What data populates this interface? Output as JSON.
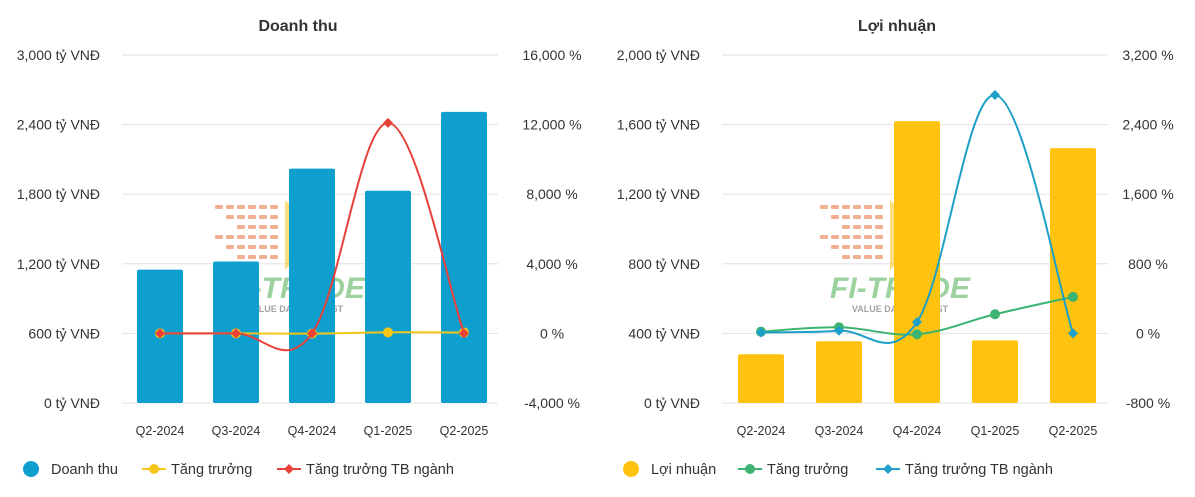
{
  "chart_data": [
    {
      "type": "bar",
      "title": "Doanh thu",
      "categories": [
        "Q2-2024",
        "Q3-2024",
        "Q4-2024",
        "Q1-2025",
        "Q2-2025"
      ],
      "y_left": {
        "ticks": [
          "0 tỷ VNĐ",
          "600 tỷ VNĐ",
          "1,200 tỷ VNĐ",
          "1,800 tỷ VNĐ",
          "2,400 tỷ VNĐ",
          "3,000 tỷ VNĐ"
        ],
        "ylim": [
          0,
          3000
        ],
        "unit": "tỷ VNĐ"
      },
      "y_right": {
        "ticks": [
          "-4,000 %",
          "0 %",
          "4,000 %",
          "8,000 %",
          "12,000 %",
          "16,000 %"
        ],
        "ylim": [
          -4000,
          16000
        ],
        "unit": "%"
      },
      "grid": true,
      "legend_position": "bottom-left",
      "series": [
        {
          "name": "Doanh thu",
          "kind": "bar",
          "axis": "left",
          "color": "#0f9fcf",
          "values": [
            1150,
            1220,
            2020,
            1830,
            2510
          ]
        },
        {
          "name": "Tăng trưởng",
          "kind": "line",
          "axis": "right",
          "color": "#f5c518",
          "marker": "circle",
          "values": [
            0,
            0,
            -10,
            60,
            50
          ]
        },
        {
          "name": "Tăng trưởng TB ngành",
          "kind": "line",
          "axis": "right",
          "color": "#e8413a",
          "marker": "diamond",
          "values": [
            0,
            0,
            0,
            12100,
            0
          ]
        }
      ]
    },
    {
      "type": "bar",
      "title": "Lợi nhuận",
      "categories": [
        "Q2-2024",
        "Q3-2024",
        "Q4-2024",
        "Q1-2025",
        "Q2-2025"
      ],
      "y_left": {
        "ticks": [
          "0 tỷ VNĐ",
          "400 tỷ VNĐ",
          "800 tỷ VNĐ",
          "1,200 tỷ VNĐ",
          "1,600 tỷ VNĐ",
          "2,000 tỷ VNĐ"
        ],
        "ylim": [
          0,
          2000
        ],
        "unit": "tỷ VNĐ"
      },
      "y_right": {
        "ticks": [
          "-800 %",
          "0 %",
          "800 %",
          "1,600 %",
          "2,400 %",
          "3,200 %"
        ],
        "ylim": [
          -800,
          3200
        ],
        "unit": "%"
      },
      "grid": true,
      "legend_position": "bottom-left",
      "series": [
        {
          "name": "Lợi nhuận",
          "kind": "bar",
          "axis": "left",
          "color": "#ffc20e",
          "values": [
            280,
            355,
            1620,
            360,
            1465
          ]
        },
        {
          "name": "Tăng trưởng",
          "kind": "line",
          "axis": "right",
          "color": "#3cb371",
          "marker": "circle",
          "values": [
            20,
            70,
            -10,
            220,
            420
          ]
        },
        {
          "name": "Tăng trưởng TB ngành",
          "kind": "line",
          "axis": "right",
          "color": "#1ba0c9",
          "marker": "diamond",
          "values": [
            10,
            30,
            130,
            2740,
            0
          ]
        }
      ]
    }
  ],
  "watermark": {
    "brand": "FI-TRADE",
    "tagline": "VALUE DATA - INVEST"
  }
}
